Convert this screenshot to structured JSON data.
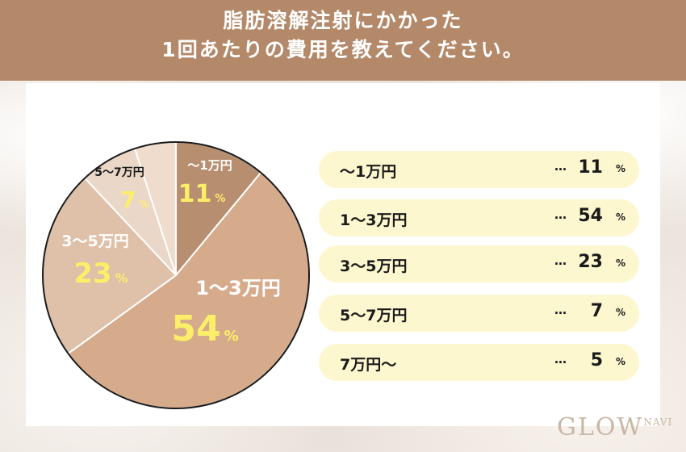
{
  "header": {
    "line1": "脂肪溶解注射にかかった",
    "line2": "1回あたりの費用を教えてください。"
  },
  "chart_data": {
    "type": "pie",
    "title": "脂肪溶解注射にかかった1回あたりの費用を教えてください。",
    "unit": "%",
    "categories": [
      "〜1万円",
      "1〜3万円",
      "3〜5万円",
      "5〜7万円",
      "7万円〜"
    ],
    "values": [
      11,
      54,
      23,
      7,
      5
    ],
    "colors": [
      "#b88e70",
      "#d6ab8c",
      "#dfc0a8",
      "#ead7c8",
      "#f0dccd"
    ],
    "legend_position": "right"
  },
  "legend": {
    "dots": "…",
    "percent": "%",
    "items": [
      {
        "label": "〜1万円",
        "value": "11"
      },
      {
        "label": "1〜3万円",
        "value": "54"
      },
      {
        "label": "3〜5万円",
        "value": "23"
      },
      {
        "label": "5〜7万円",
        "value": "7"
      },
      {
        "label": "7万円〜",
        "value": "5"
      }
    ]
  },
  "logo": {
    "main": "GLOW",
    "sub": "NAVI"
  }
}
